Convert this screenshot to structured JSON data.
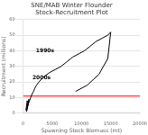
{
  "chart_data": {
    "type": "line",
    "title": "SNE/MAB Winter Flounder\nStock-Recruitment Plot",
    "xlabel": "Spawning Stock Biomass (mt)",
    "ylabel": "Recruitment (millions)",
    "x": [
      800,
      600,
      500,
      700,
      900,
      750,
      600,
      850,
      1000,
      800,
      700,
      900,
      1100,
      1300,
      1500,
      1800,
      2000,
      2300,
      2700,
      3200,
      3800,
      4500,
      5500,
      6500,
      7500,
      8500,
      9500,
      10500,
      11500,
      12500,
      13500,
      14500,
      15000,
      14500,
      13000,
      11000,
      9000
    ],
    "values": [
      5,
      3,
      2,
      8,
      6,
      4,
      1,
      7,
      9,
      5,
      3,
      6,
      8,
      10,
      12,
      14,
      16,
      18,
      20,
      22,
      24,
      26,
      28,
      30,
      33,
      36,
      38,
      40,
      43,
      46,
      48,
      50,
      52,
      35,
      25,
      18,
      14
    ],
    "color": "#000000",
    "marker": "none",
    "reference_line": {
      "y": 11,
      "color": "#ff0000"
    },
    "annotations": [
      {
        "text": "1990s",
        "x": 2200,
        "y": 38
      },
      {
        "text": "2000s",
        "x": 1600,
        "y": 21
      }
    ],
    "xlim": [
      0,
      20000
    ],
    "xticks": [
      0,
      5000,
      10000,
      15000,
      20000
    ],
    "ylim": [
      0,
      60
    ],
    "yticks": [
      0,
      10,
      20,
      30,
      40,
      50,
      60
    ],
    "grid": "y"
  }
}
